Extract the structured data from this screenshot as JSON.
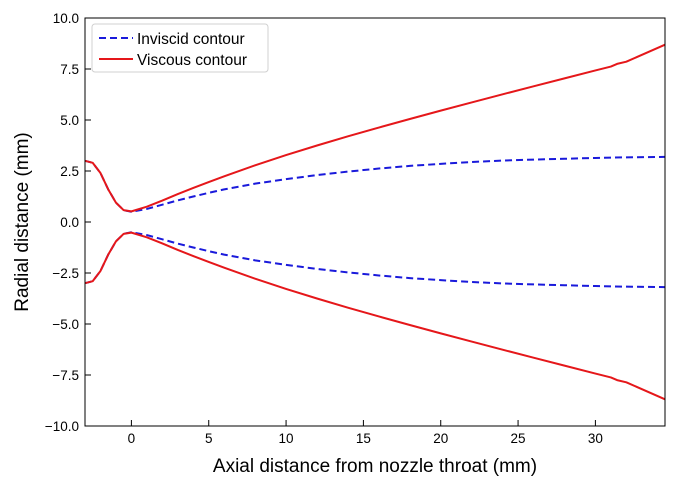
{
  "chart_data": {
    "type": "line",
    "title": "",
    "xlabel": "Axial distance from nozzle throat (mm)",
    "ylabel": "Radial distance (mm)",
    "xlim": [
      -3,
      34.5
    ],
    "ylim": [
      -10,
      10
    ],
    "xticks": [
      0,
      5,
      10,
      15,
      20,
      25,
      30
    ],
    "xtick_labels": [
      "0",
      "5",
      "10",
      "15",
      "20",
      "25",
      "30"
    ],
    "yticks": [
      -10,
      -7.5,
      -5,
      -2.5,
      0,
      2.5,
      5,
      7.5,
      10
    ],
    "ytick_labels": [
      "−10.0",
      "−7.5",
      "−5.0",
      "−2.5",
      "0.0",
      "2.5",
      "5.0",
      "7.5",
      "10.0"
    ],
    "grid": false,
    "legend_position": "top-left",
    "series": [
      {
        "name": "Inviscid contour",
        "color": "#1a1adb",
        "dash": "dashed",
        "x": [
          -3,
          -2.5,
          -2,
          -1.5,
          -1,
          -0.5,
          0,
          1,
          2,
          3,
          4,
          5,
          6,
          8,
          10,
          12,
          14,
          16,
          18,
          20,
          22,
          24,
          26,
          28,
          30,
          32,
          34.5
        ],
        "y_upper": [
          3.0,
          2.9,
          2.4,
          1.6,
          0.95,
          0.58,
          0.5,
          0.64,
          0.85,
          1.06,
          1.25,
          1.43,
          1.6,
          1.88,
          2.1,
          2.3,
          2.47,
          2.62,
          2.75,
          2.85,
          2.94,
          3.01,
          3.06,
          3.1,
          3.14,
          3.17,
          3.19
        ],
        "y_lower": [
          -3.0,
          -2.9,
          -2.4,
          -1.6,
          -0.95,
          -0.58,
          -0.5,
          -0.64,
          -0.85,
          -1.06,
          -1.25,
          -1.43,
          -1.6,
          -1.88,
          -2.1,
          -2.3,
          -2.47,
          -2.62,
          -2.75,
          -2.85,
          -2.94,
          -3.01,
          -3.06,
          -3.1,
          -3.14,
          -3.17,
          -3.19
        ]
      },
      {
        "name": "Viscous contour",
        "color": "#e5171a",
        "dash": "solid",
        "x": [
          -3,
          -2.5,
          -2,
          -1.5,
          -1,
          -0.5,
          0,
          1,
          2,
          3,
          4,
          5,
          6,
          8,
          10,
          12,
          14,
          16,
          18,
          20,
          22,
          24,
          26,
          28,
          30,
          31,
          31.4,
          32,
          34.5
        ],
        "y_upper": [
          3.0,
          2.9,
          2.4,
          1.6,
          0.95,
          0.58,
          0.52,
          0.75,
          1.05,
          1.37,
          1.67,
          1.96,
          2.24,
          2.78,
          3.28,
          3.75,
          4.2,
          4.63,
          5.05,
          5.46,
          5.86,
          6.26,
          6.65,
          7.04,
          7.43,
          7.62,
          7.75,
          7.86,
          8.69
        ],
        "y_lower": [
          -3.0,
          -2.9,
          -2.4,
          -1.6,
          -0.95,
          -0.58,
          -0.52,
          -0.75,
          -1.05,
          -1.37,
          -1.67,
          -1.96,
          -2.24,
          -2.78,
          -3.28,
          -3.75,
          -4.2,
          -4.63,
          -5.05,
          -5.46,
          -5.86,
          -6.26,
          -6.65,
          -7.04,
          -7.43,
          -7.62,
          -7.75,
          -7.86,
          -8.69
        ]
      }
    ]
  }
}
